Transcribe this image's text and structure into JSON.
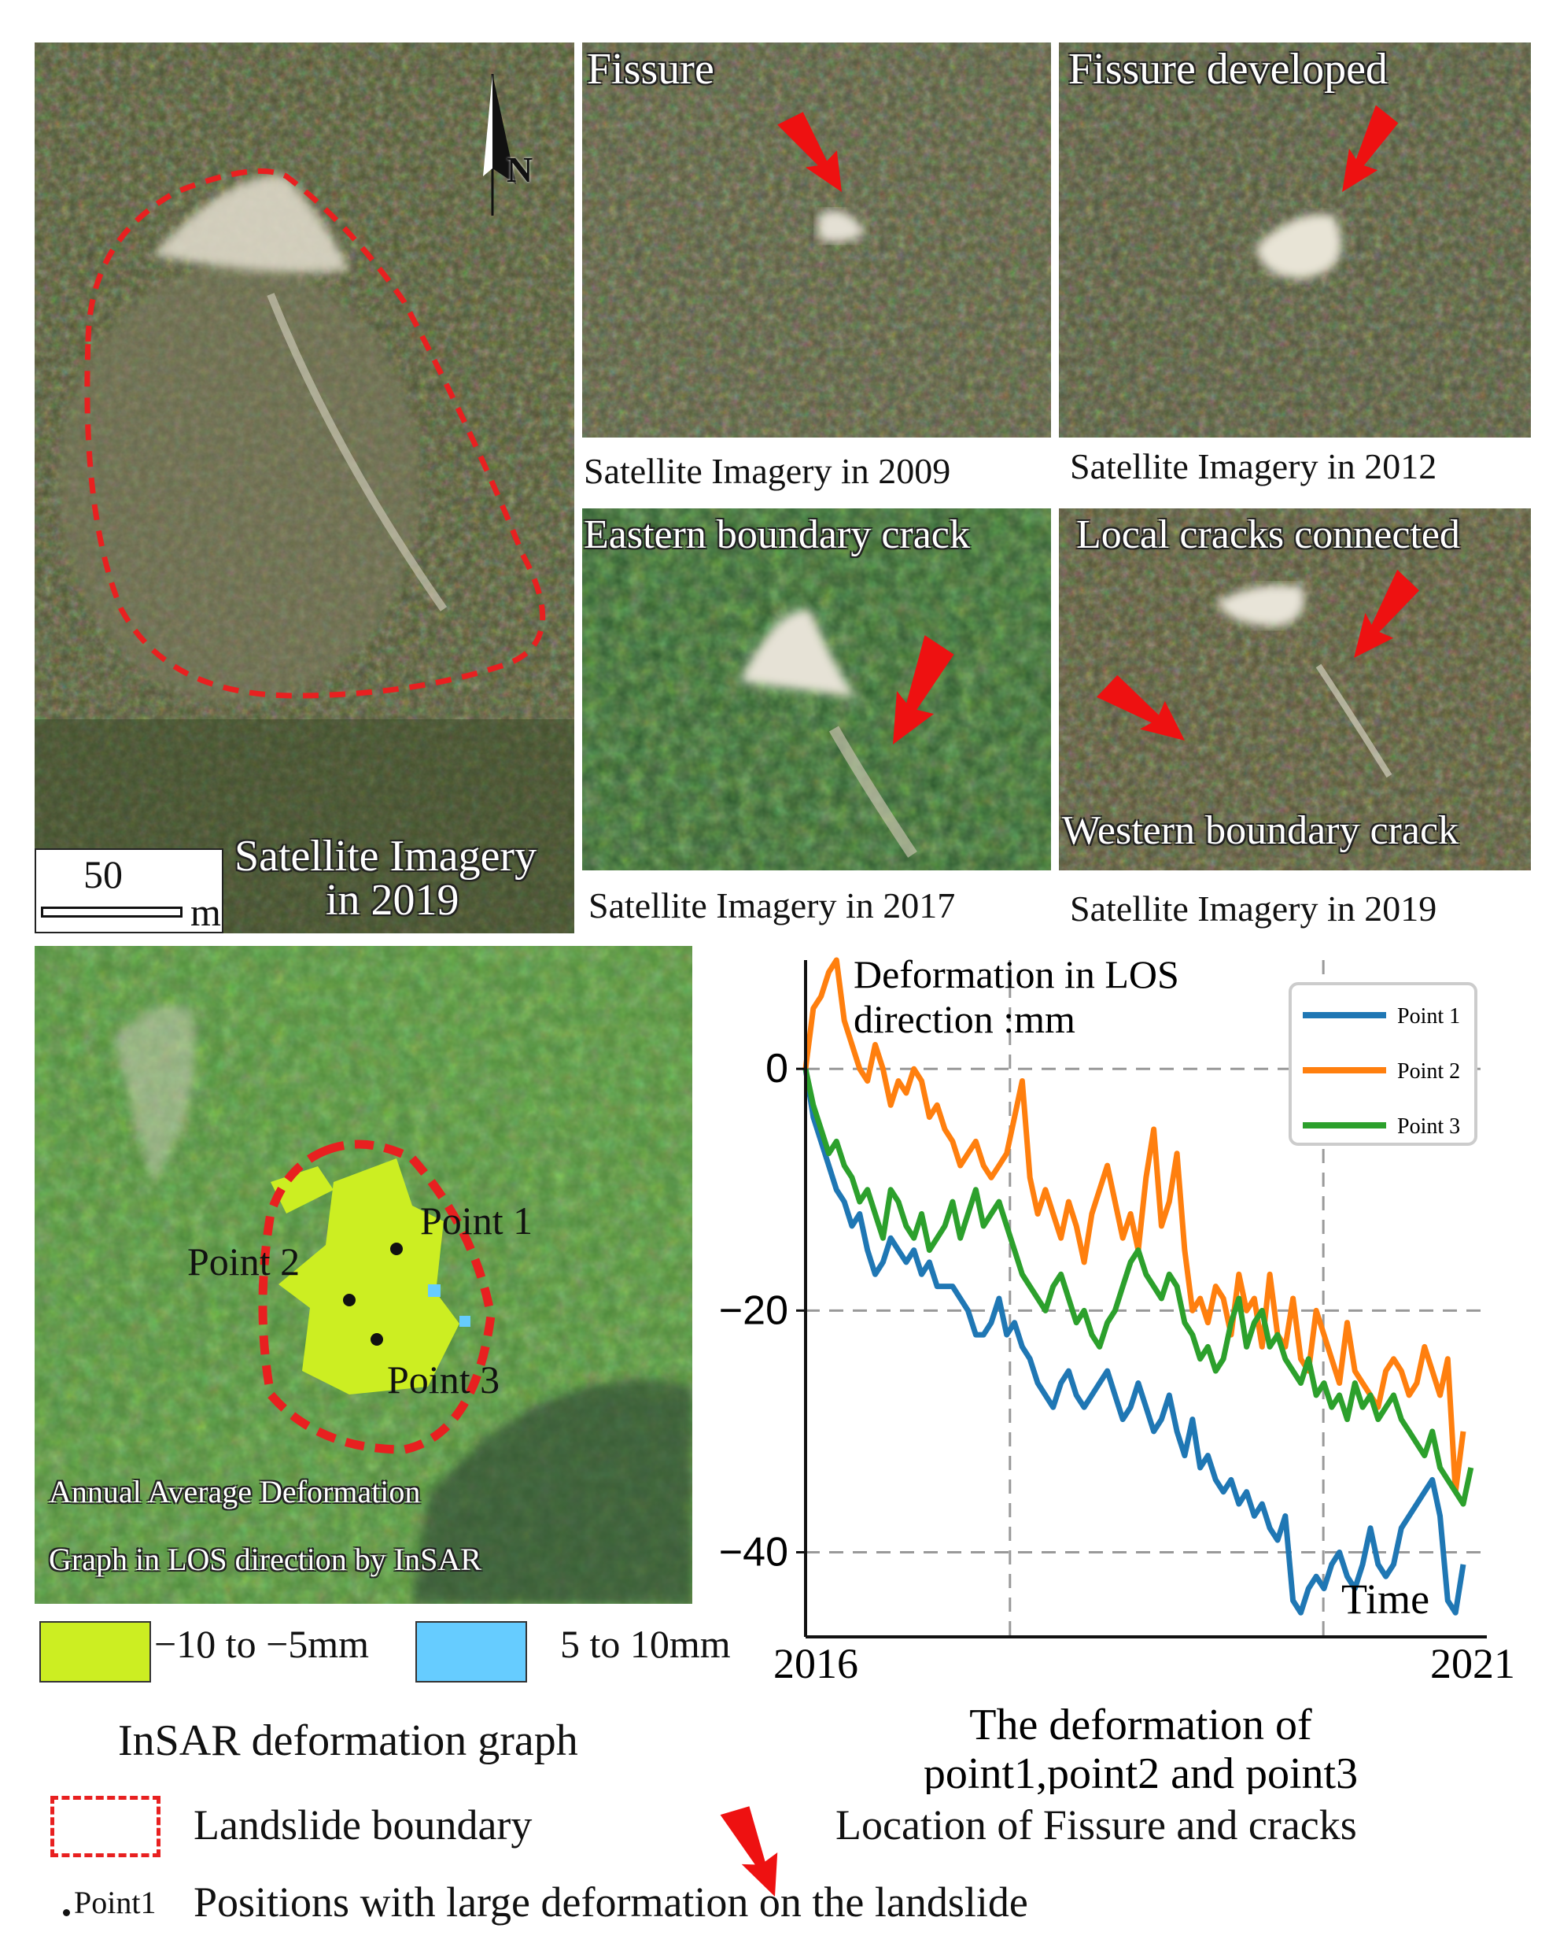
{
  "main_panel": {
    "caption_line1": "Satellite Imagery",
    "caption_line2": "in 2019",
    "scale_value": "50",
    "scale_unit": "m",
    "north_label": "N"
  },
  "panel_2009": {
    "overlay": "Fissure",
    "caption": "Satellite Imagery in 2009"
  },
  "panel_2012": {
    "overlay": "Fissure developed",
    "caption": "Satellite Imagery in 2012"
  },
  "panel_2017": {
    "overlay": "Eastern boundary crack",
    "caption": "Satellite Imagery in 2017"
  },
  "panel_2019b": {
    "overlay": "Local cracks connected",
    "overlay_bottom": "Western boundary crack",
    "caption": "Satellite Imagery in 2019"
  },
  "insar_panel": {
    "point1": "Point 1",
    "point2": "Point 2",
    "point3": "Point 3",
    "caption_line1": "Annual Average Deformation",
    "caption_line2": "Graph in LOS direction by InSAR",
    "legend_green": "−10 to −5mm",
    "legend_blue": "5 to 10mm",
    "title": "InSAR deformation graph",
    "colors": {
      "green": "#ccee22",
      "blue": "#66ccff"
    }
  },
  "chart_data": {
    "type": "line",
    "title_line1": "Deformation in LOS",
    "title_line2": "direction :mm",
    "xlabel": "Time",
    "x_start_label": "2016",
    "x_end_label": "2021",
    "yticks": [
      0,
      -20,
      -40
    ],
    "ylim": [
      -47,
      9
    ],
    "caption_line1": "The deformation of",
    "caption_line2": "point1,point2 and point3",
    "series": [
      {
        "name": "Point 1",
        "color": "#1f77b4",
        "values": [
          0,
          -4,
          -6,
          -8,
          -10,
          -11,
          -13,
          -12,
          -15,
          -17,
          -16,
          -14,
          -15,
          -16,
          -15,
          -17,
          -16,
          -18,
          -18,
          -18,
          -19,
          -20,
          -22,
          -22,
          -21,
          -19,
          -22,
          -21,
          -23,
          -24,
          -26,
          -27,
          -28,
          -26,
          -25,
          -27,
          -28,
          -27,
          -26,
          -25,
          -27,
          -29,
          -28,
          -26,
          -28,
          -30,
          -29,
          -27,
          -30,
          -32,
          -29,
          -33,
          -32,
          -34,
          -35,
          -34,
          -36,
          -35,
          -37,
          -36,
          -38,
          -39,
          -37,
          -44,
          -45,
          -43,
          -42,
          -43,
          -41,
          -40,
          -42,
          -43,
          -41,
          -38,
          -41,
          -42,
          -41,
          -38,
          -37,
          -36,
          -35,
          -34,
          -37,
          -44,
          -45,
          -41
        ]
      },
      {
        "name": "Point 2",
        "color": "#ff7f0e",
        "values": [
          0,
          5,
          6,
          8,
          9,
          4,
          2,
          0,
          -1,
          2,
          0,
          -3,
          -1,
          -2,
          0,
          -1,
          -4,
          -3,
          -5,
          -6,
          -8,
          -7,
          -6,
          -8,
          -9,
          -8,
          -7,
          -4,
          -1,
          -9,
          -12,
          -10,
          -12,
          -14,
          -11,
          -13,
          -16,
          -12,
          -10,
          -8,
          -11,
          -14,
          -12,
          -15,
          -9,
          -5,
          -13,
          -11,
          -7,
          -15,
          -20,
          -19,
          -21,
          -18,
          -19,
          -22,
          -17,
          -20,
          -19,
          -23,
          -17,
          -22,
          -23,
          -19,
          -24,
          -25,
          -20,
          -22,
          -24,
          -26,
          -21,
          -25,
          -26,
          -27,
          -28,
          -25,
          -24,
          -25,
          -27,
          -26,
          -23,
          -25,
          -27,
          -24,
          -35,
          -30
        ]
      },
      {
        "name": "Point 3",
        "color": "#2ca02c",
        "values": [
          0,
          -3,
          -5,
          -7,
          -6,
          -8,
          -9,
          -11,
          -10,
          -12,
          -14,
          -10,
          -11,
          -13,
          -14,
          -12,
          -15,
          -14,
          -13,
          -11,
          -14,
          -12,
          -10,
          -13,
          -12,
          -11,
          -13,
          -15,
          -17,
          -18,
          -19,
          -20,
          -18,
          -17,
          -19,
          -21,
          -20,
          -22,
          -23,
          -21,
          -20,
          -18,
          -16,
          -15,
          -17,
          -18,
          -19,
          -17,
          -18,
          -21,
          -22,
          -24,
          -23,
          -25,
          -24,
          -21,
          -19,
          -23,
          -21,
          -20,
          -23,
          -22,
          -24,
          -25,
          -26,
          -24,
          -27,
          -26,
          -28,
          -27,
          -29,
          -26,
          -28,
          -27,
          -29,
          -28,
          -27,
          -29,
          -30,
          -31,
          -32,
          -30,
          -33,
          -34,
          -35,
          -36,
          -33
        ]
      }
    ]
  },
  "legend": {
    "boundary_label": "Landslide boundary",
    "arrow_label": "Location of Fissure and cracks",
    "point_tag": "Point1",
    "point_label": "Positions with large deformation on the landslide",
    "boundary_color": "#e82020",
    "arrow_color": "#ee1111"
  }
}
